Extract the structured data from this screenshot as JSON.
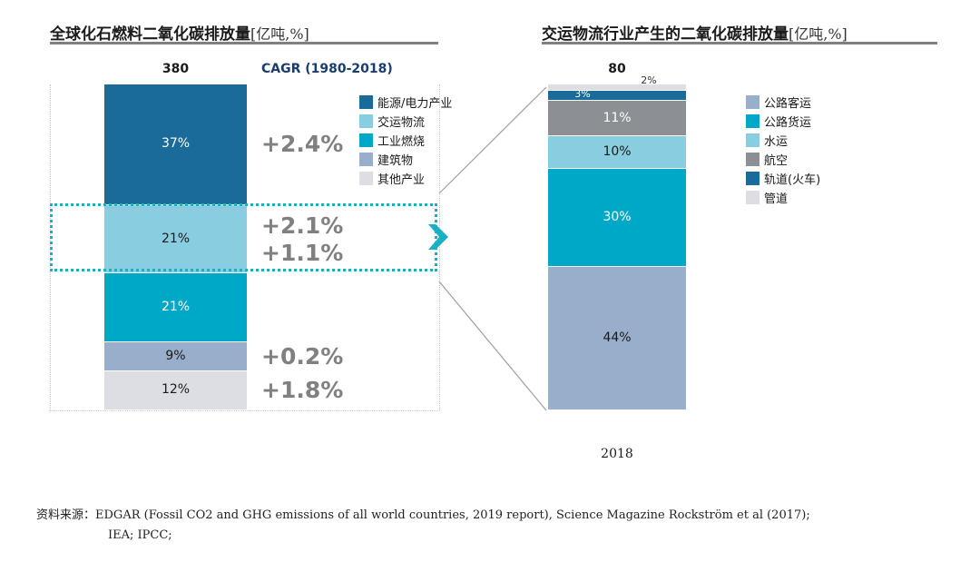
{
  "chart_data": [
    {
      "type": "bar",
      "stacked": true,
      "title": "全球化石燃料二氧化碳排放量",
      "unit": "[亿吨,%]",
      "total_label": "380",
      "cagr_header": "CAGR (1980-2018)",
      "categories": [
        "能源/电力产业",
        "交运物流",
        "工业燃烧",
        "建筑物",
        "其他产业"
      ],
      "values": [
        37,
        21,
        21,
        9,
        12
      ],
      "value_labels": [
        "37%",
        "21%",
        "21%",
        "9%",
        "12%"
      ],
      "cagr": [
        {
          "label": "+2.4%",
          "anchor": 0
        },
        {
          "label": "+2.1%",
          "anchor": 1
        },
        {
          "label": "+1.1%",
          "anchor": 1
        },
        {
          "label": "+0.2%",
          "anchor": 3
        },
        {
          "label": "+1.8%",
          "anchor": 4
        }
      ],
      "highlight": "交运物流",
      "colors": [
        "#1a6b9a",
        "#88cee0",
        "#00a8c8",
        "#98aecb",
        "#dcdee3"
      ],
      "label_colors": [
        "#ffffff",
        "#1a1a1a",
        "#ffffff",
        "#1a1a1a",
        "#1a1a1a"
      ],
      "legend_position": "right"
    },
    {
      "type": "bar",
      "stacked": true,
      "title": "交运物流行业产生的二氧化碳排放量",
      "unit": "[亿吨,%]",
      "total_label": "80",
      "x_label": "2018",
      "categories": [
        "公路客运",
        "公路货运",
        "水运",
        "航空",
        "轨道(火车)",
        "管道"
      ],
      "values": [
        44,
        30,
        10,
        11,
        3,
        2
      ],
      "value_labels": [
        "44%",
        "30%",
        "10%",
        "11%",
        "3%",
        "2%"
      ],
      "colors": [
        "#98aecb",
        "#00a8c8",
        "#88cee0",
        "#8c8f94",
        "#1a6b9a",
        "#dcdee3"
      ],
      "label_colors": [
        "#1a1a1a",
        "#ffffff",
        "#1a1a1a",
        "#ffffff",
        "#ffffff",
        "#333333"
      ],
      "legend_position": "right"
    }
  ],
  "source": {
    "prefix": "资料来源：",
    "line1": "EDGAR (Fossil CO2 and GHG emissions of all world countries, 2019 report), Science Magazine Rockström et al (2017);",
    "line2": "IEA; IPCC;"
  },
  "colors": {
    "cagr_text": "#808080",
    "cagr_header": "#1a3d6d",
    "highlight_border": "#1ab0c4",
    "arrow": "#1ab0c4",
    "connector": "#9e9e9e"
  }
}
